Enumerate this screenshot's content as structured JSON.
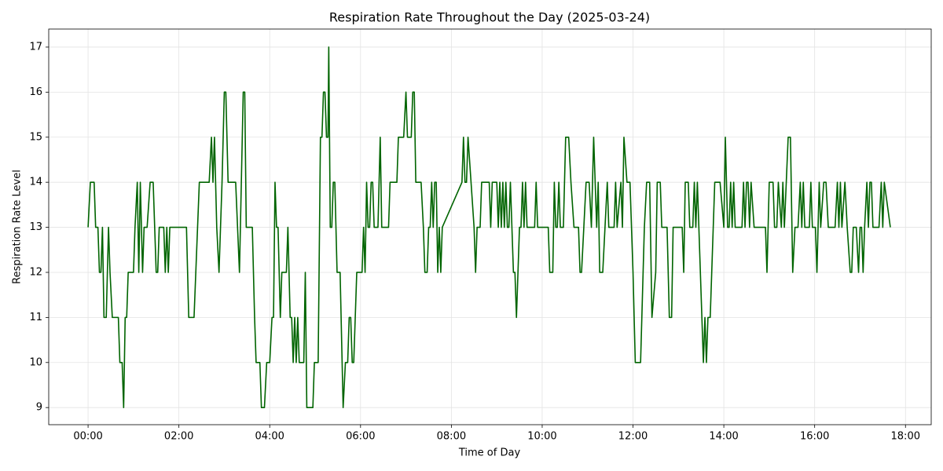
{
  "chart_data": {
    "type": "line",
    "title": "Respiration Rate Throughout the Day (2025-03-24)",
    "x_label": "Time of Day",
    "y_label": "Respiration Rate Level",
    "x": [
      0,
      3,
      8,
      10,
      13,
      15,
      17,
      19,
      21,
      24,
      27,
      29,
      32,
      40,
      42,
      45,
      47,
      49,
      51,
      53,
      60,
      62,
      65,
      67,
      69,
      72,
      74,
      78,
      82,
      86,
      90,
      92,
      94,
      100,
      102,
      104,
      106,
      108,
      120,
      130,
      133,
      140,
      147,
      160,
      163,
      165,
      167,
      170,
      173,
      177,
      180,
      182,
      185,
      195,
      200,
      205,
      207,
      209,
      217,
      220,
      222,
      227,
      229,
      233,
      236,
      240,
      243,
      245,
      247,
      249,
      251,
      254,
      256,
      262,
      264,
      267,
      269,
      271,
      273,
      275,
      277,
      279,
      285,
      287,
      289,
      297,
      299,
      304,
      307,
      309,
      311,
      313,
      315,
      317,
      318,
      320,
      322,
      324,
      326,
      329,
      333,
      337,
      340,
      343,
      345,
      347,
      349,
      351,
      355,
      362,
      364,
      366,
      368,
      370,
      372,
      374,
      376,
      378,
      383,
      386,
      388,
      397,
      399,
      408,
      410,
      417,
      420,
      422,
      427,
      429,
      431,
      433,
      440,
      443,
      445,
      448,
      450,
      452,
      454,
      456,
      458,
      460,
      462,
      464,
      466,
      468,
      494,
      496,
      498,
      500,
      502,
      510,
      512,
      514,
      518,
      520,
      530,
      532,
      534,
      540,
      542,
      544,
      546,
      548,
      550,
      552,
      554,
      556,
      558,
      562,
      564,
      566,
      570,
      572,
      574,
      576,
      578,
      580,
      590,
      592,
      594,
      600,
      608,
      610,
      614,
      616,
      618,
      620,
      622,
      624,
      628,
      631,
      635,
      638,
      642,
      648,
      650,
      652,
      655,
      658,
      662,
      665,
      668,
      670,
      672,
      674,
      676,
      680,
      683,
      686,
      688,
      695,
      697,
      699,
      704,
      706,
      708,
      712,
      716,
      720,
      723,
      730,
      735,
      738,
      742,
      745,
      750,
      752,
      756,
      758,
      765,
      768,
      771,
      773,
      785,
      787,
      789,
      793,
      795,
      799,
      801,
      803,
      805,
      807,
      811,
      813,
      815,
      817,
      819,
      822,
      828,
      835,
      840,
      842,
      845,
      847,
      849,
      851,
      853,
      855,
      864,
      866,
      868,
      870,
      872,
      874,
      876,
      880,
      895,
      897,
      900,
      905,
      907,
      910,
      912,
      916,
      918,
      920,
      925,
      928,
      931,
      934,
      938,
      941,
      943,
      945,
      947,
      953,
      955,
      957,
      961,
      963,
      966,
      968,
      972,
      975,
      978,
      987,
      990,
      992,
      994,
      996,
      1000,
      1003,
      1007,
      1009,
      1011,
      1015,
      1018,
      1020,
      1022,
      1024,
      1026,
      1029,
      1031,
      1033,
      1035,
      1037,
      1045,
      1048,
      1050,
      1052,
      1060
    ],
    "series": [
      {
        "color": "#006400",
        "values": [
          13,
          14,
          14,
          13,
          13,
          12,
          12,
          13,
          11,
          11,
          13,
          12,
          11,
          11,
          10,
          10,
          9,
          11,
          11,
          12,
          12,
          13,
          14,
          12,
          14,
          12,
          13,
          13,
          14,
          14,
          12,
          12,
          13,
          13,
          12,
          13,
          12,
          13,
          13,
          13,
          11,
          11,
          14,
          14,
          15,
          14,
          15,
          13,
          12,
          14,
          16,
          16,
          14,
          14,
          12,
          16,
          16,
          13,
          13,
          11,
          10,
          10,
          9,
          9,
          10,
          10,
          11,
          11,
          14,
          13,
          13,
          11,
          12,
          12,
          13,
          11,
          11,
          10,
          11,
          10,
          11,
          10,
          10,
          12,
          9,
          9,
          10,
          10,
          15,
          15,
          16,
          16,
          15,
          15,
          17,
          13,
          13,
          14,
          14,
          12,
          12,
          9,
          10,
          10,
          11,
          11,
          10,
          10,
          12,
          12,
          13,
          12,
          14,
          13,
          13,
          14,
          14,
          13,
          13,
          15,
          13,
          13,
          14,
          14,
          15,
          15,
          16,
          15,
          15,
          16,
          16,
          14,
          14,
          13,
          12,
          12,
          13,
          13,
          14,
          13,
          14,
          14,
          12,
          13,
          12,
          13,
          14,
          15,
          14,
          14,
          15,
          13,
          12,
          13,
          13,
          14,
          14,
          13,
          14,
          14,
          13,
          14,
          13,
          14,
          13,
          14,
          13,
          13,
          14,
          12,
          12,
          11,
          13,
          13,
          14,
          13,
          14,
          13,
          13,
          14,
          13,
          13,
          13,
          12,
          12,
          14,
          13,
          13,
          14,
          13,
          13,
          15,
          15,
          14,
          13,
          13,
          12,
          12,
          13,
          14,
          14,
          13,
          15,
          14,
          13,
          14,
          12,
          12,
          13,
          14,
          13,
          13,
          14,
          13,
          14,
          13,
          15,
          14,
          14,
          12,
          10,
          10,
          13,
          14,
          14,
          11,
          12,
          14,
          14,
          13,
          13,
          11,
          11,
          13,
          13,
          12,
          14,
          14,
          13,
          13,
          14,
          13,
          14,
          13,
          11,
          10,
          11,
          10,
          11,
          11,
          14,
          14,
          13,
          15,
          13,
          13,
          14,
          13,
          14,
          13,
          13,
          14,
          13,
          14,
          14,
          13,
          14,
          13,
          13,
          12,
          14,
          14,
          13,
          13,
          14,
          13,
          14,
          13,
          15,
          15,
          12,
          13,
          13,
          14,
          13,
          14,
          13,
          13,
          14,
          13,
          13,
          12,
          14,
          13,
          14,
          14,
          13,
          13,
          14,
          13,
          14,
          13,
          14,
          13,
          12,
          12,
          13,
          13,
          12,
          13,
          13,
          12,
          13,
          14,
          13,
          14,
          14,
          13,
          13,
          14,
          13,
          14,
          13
        ]
      }
    ],
    "xlim": [
      -52,
      1114
    ],
    "ylim": [
      8.62,
      17.4
    ],
    "xticks": [
      {
        "value": 0,
        "label": "00:00"
      },
      {
        "value": 120,
        "label": "02:00"
      },
      {
        "value": 240,
        "label": "04:00"
      },
      {
        "value": 360,
        "label": "06:00"
      },
      {
        "value": 480,
        "label": "08:00"
      },
      {
        "value": 600,
        "label": "10:00"
      },
      {
        "value": 720,
        "label": "12:00"
      },
      {
        "value": 840,
        "label": "14:00"
      },
      {
        "value": 960,
        "label": "16:00"
      },
      {
        "value": 1080,
        "label": "18:00"
      }
    ],
    "yticks": [
      9,
      10,
      11,
      12,
      13,
      14,
      15,
      16,
      17
    ],
    "grid": true
  }
}
